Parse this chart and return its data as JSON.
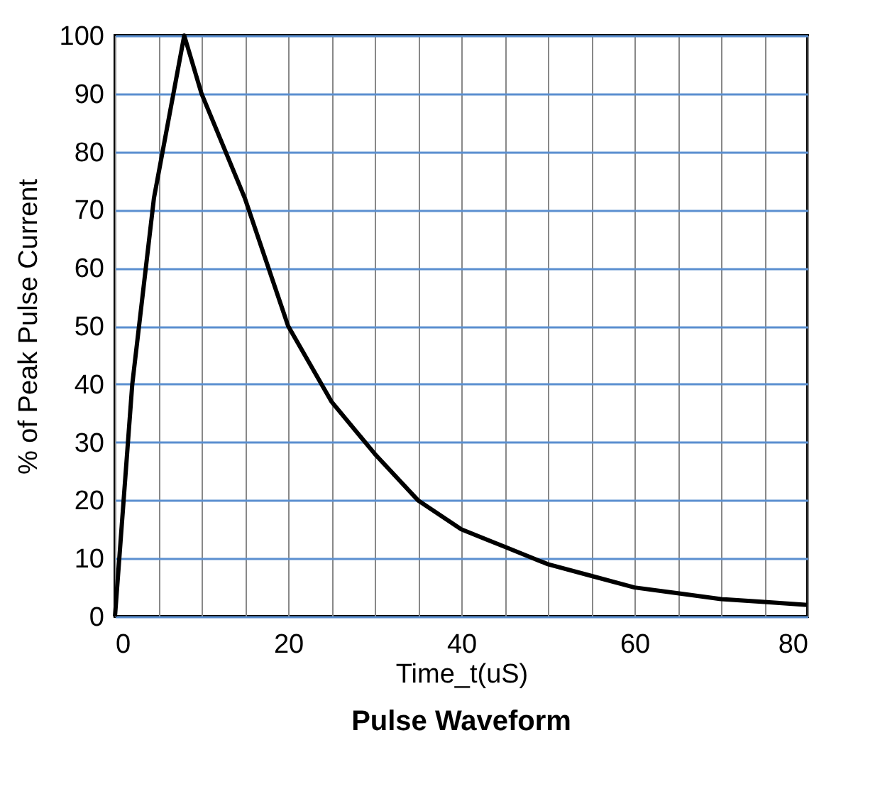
{
  "chart_data": {
    "type": "line",
    "title": "Pulse Waveform",
    "xlabel": "Time_t(uS)",
    "ylabel": "% of Peak Pulse Current",
    "x": [
      0,
      2,
      4.5,
      8,
      10,
      15,
      20,
      25,
      30,
      35,
      40,
      45,
      50,
      55,
      60,
      65,
      70,
      75,
      80
    ],
    "series": [
      {
        "color": "#000000",
        "values": [
          0,
          40,
          72,
          100,
          90,
          72,
          50,
          37,
          28,
          20,
          15,
          12,
          9,
          7,
          5,
          4,
          3,
          2.5,
          2
        ]
      }
    ],
    "xlim": [
      0,
      80
    ],
    "ylim": [
      0,
      100
    ],
    "xticks": [
      0,
      {
        "value": 5,
        "label": null
      },
      {
        "value": 10,
        "label": null
      },
      {
        "value": 15,
        "label": null
      },
      20,
      {
        "value": 25,
        "label": null
      },
      {
        "value": 30,
        "label": null
      },
      {
        "value": 35,
        "label": null
      },
      40,
      {
        "value": 45,
        "label": null
      },
      {
        "value": 50,
        "label": null
      },
      {
        "value": 55,
        "label": null
      },
      60,
      {
        "value": 65,
        "label": null
      },
      {
        "value": 70,
        "label": null
      },
      {
        "value": 75,
        "label": null
      },
      80
    ],
    "yticks": [
      0,
      10,
      20,
      30,
      40,
      50,
      60,
      70,
      80,
      90,
      100
    ],
    "grid": true,
    "marker": "none",
    "line_style": "solid",
    "legend": false
  }
}
